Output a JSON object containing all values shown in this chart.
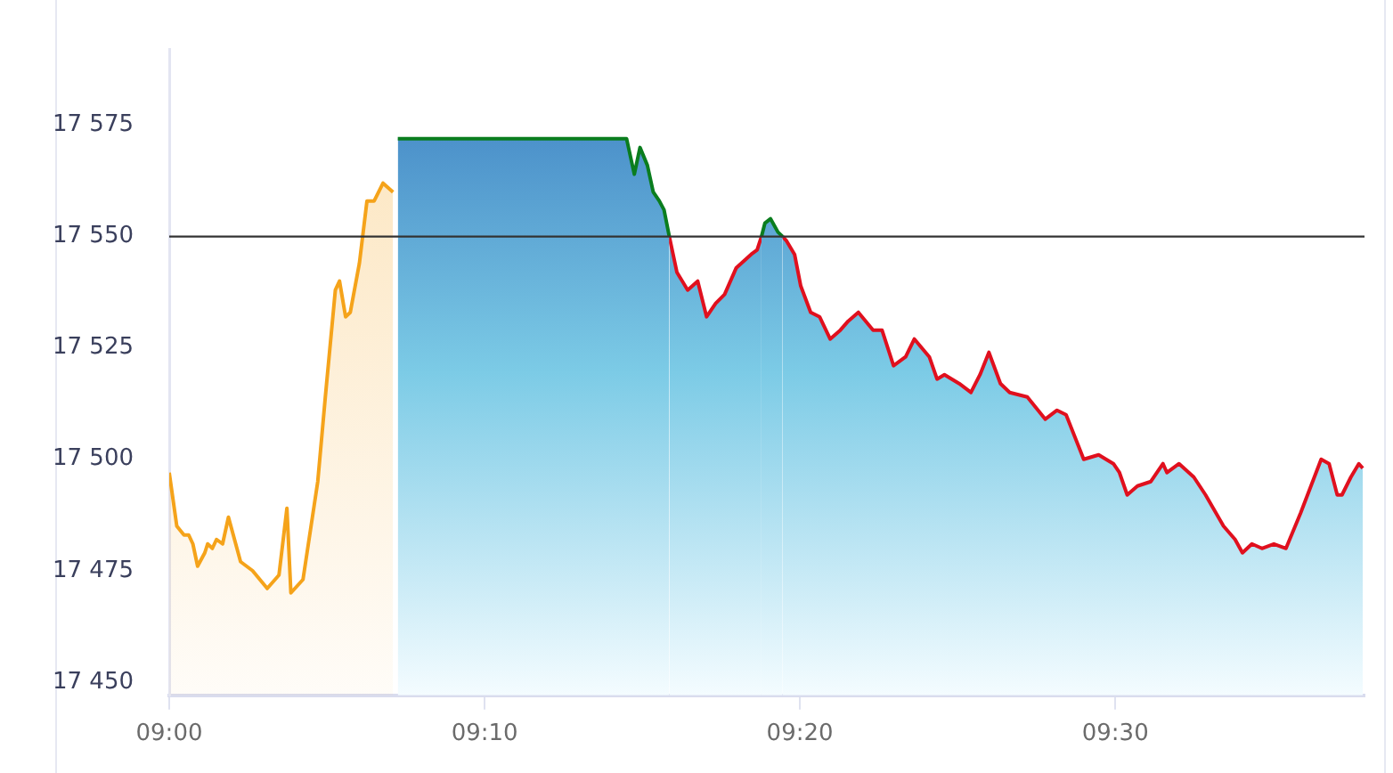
{
  "chart_data": {
    "type": "area",
    "xlim": [
      9,
      9.6317
    ],
    "ylim": [
      17447,
      17592
    ],
    "xticks": [
      {
        "value": 9,
        "label": "09:00"
      },
      {
        "value": 9.1667,
        "label": "09:10"
      },
      {
        "value": 9.3333,
        "label": "09:20"
      },
      {
        "value": 9.5,
        "label": "09:30"
      }
    ],
    "yticks": [
      {
        "value": 17450,
        "label": "17 450"
      },
      {
        "value": 17475,
        "label": "17 475"
      },
      {
        "value": 17500,
        "label": "17 500"
      },
      {
        "value": 17525,
        "label": "17 525"
      },
      {
        "value": 17550,
        "label": "17 550"
      },
      {
        "value": 17575,
        "label": "17 575"
      }
    ],
    "grid": false,
    "legend": false,
    "marker": "none",
    "ref_lines": [
      {
        "axis": "y",
        "value": 17550,
        "color": "#333333"
      }
    ],
    "series": [
      {
        "color": "#f5a31a",
        "x": [
          9,
          9.004,
          9.0078,
          9.0103,
          9.0125,
          9.015,
          9.0188,
          9.0203,
          9.0228,
          9.025,
          9.0282,
          9.0313,
          9.0377,
          9.044,
          9.0518,
          9.058,
          9.0622,
          9.0643,
          9.0707,
          9.0785,
          9.0825,
          9.0878,
          9.09,
          9.0932,
          9.0957,
          9.1005,
          9.1045,
          9.1083,
          9.113,
          9.1183
        ],
        "values": [
          17497,
          17485,
          17483,
          17483,
          17481,
          17476,
          17479,
          17481,
          17480,
          17482,
          17481,
          17487,
          17477,
          17475,
          17471,
          17474,
          17489,
          17470,
          17473,
          17495,
          17514,
          17538,
          17540,
          17532,
          17533,
          17544,
          17558,
          17558,
          17562,
          17560
        ]
      },
      {
        "color": "#0a7d1e",
        "x": [
          9.1208,
          9.2417,
          9.2458,
          9.2488,
          9.2527,
          9.2558,
          9.259,
          9.2615,
          9.2643,
          9.2644,
          9.313,
          9.3148,
          9.3178,
          9.3217,
          9.3242
        ],
        "values": [
          17572,
          17572,
          17564,
          17570,
          17566,
          17560,
          17558,
          17556,
          17550,
          null,
          17550,
          17553,
          17554,
          17551,
          17550
        ]
      },
      {
        "color": "#e0101e",
        "x": [
          9.2643,
          9.2683,
          9.274,
          9.2793,
          9.284,
          9.2888,
          9.2935,
          9.2997,
          9.3075,
          9.3107,
          9.313,
          9.3131,
          9.3242,
          9.3263,
          9.3305,
          9.3337,
          9.339,
          9.3437,
          9.3493,
          9.3547,
          9.3588,
          9.3642,
          9.372,
          9.3767,
          9.3828,
          9.3892,
          9.3938,
          9.4017,
          9.4058,
          9.4097,
          9.4175,
          9.4237,
          9.4285,
          9.4332,
          9.4393,
          9.4442,
          9.4535,
          9.463,
          9.4692,
          9.474,
          9.4833,
          9.4912,
          9.499,
          9.5022,
          9.5063,
          9.5117,
          9.5188,
          9.5252,
          9.5273,
          9.5337,
          9.5415,
          9.5477,
          9.5572,
          9.5633,
          9.5672,
          9.5722,
          9.5775,
          9.5838,
          9.5902,
          9.598,
          9.6088,
          9.613,
          9.6173,
          9.6198,
          9.6245,
          9.6287,
          9.6308
        ],
        "values": [
          17550,
          17542,
          17538,
          17540,
          17532,
          17535,
          17537,
          17543,
          17546,
          17547,
          17550,
          null,
          17550,
          17549,
          17546,
          17539,
          17533,
          17532,
          17527,
          17529,
          17531,
          17533,
          17529,
          17529,
          17521,
          17523,
          17527,
          17523,
          17518,
          17519,
          17517,
          17515,
          17519,
          17524,
          17517,
          17515,
          17514,
          17509,
          17511,
          17510,
          17500,
          17501,
          17499,
          17497,
          17492,
          17494,
          17495,
          17499,
          17497,
          17499,
          17496,
          17492,
          17485,
          17482,
          17479,
          17481,
          17480,
          17481,
          17480,
          17488,
          17500,
          17499,
          17492,
          17492,
          17496,
          17499,
          17498
        ]
      }
    ]
  }
}
